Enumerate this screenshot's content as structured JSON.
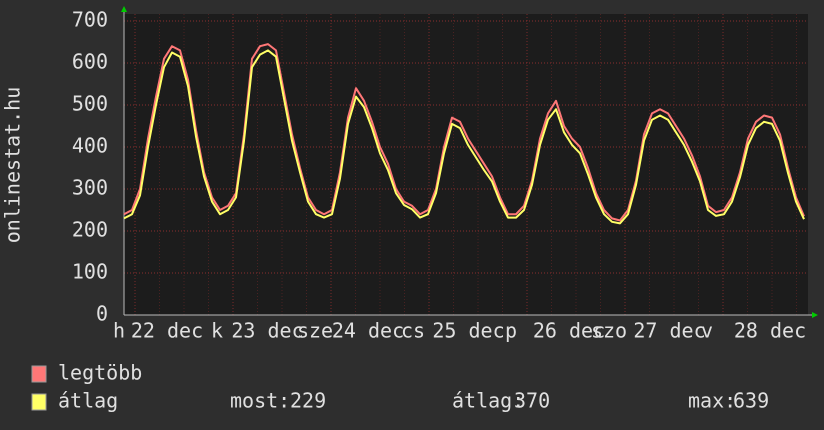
{
  "chart_data": {
    "type": "line",
    "y_label": "onlinestat.hu",
    "x_labels": [
      "h",
      "22 dec",
      "k",
      "23 dec",
      "sze",
      "24 dec",
      "cs",
      "25 dec",
      "p",
      "26 dec",
      "szo",
      "27 dec",
      "v",
      "28 dec"
    ],
    "ylim": [
      0,
      700
    ],
    "yticks": [
      0,
      100,
      200,
      300,
      400,
      500,
      600,
      700
    ],
    "grid": true,
    "series": [
      {
        "name": "legtöbb",
        "color": "#ff7777",
        "values": [
          240,
          250,
          300,
          420,
          520,
          610,
          640,
          630,
          560,
          440,
          340,
          280,
          250,
          260,
          290,
          430,
          610,
          640,
          645,
          630,
          530,
          430,
          350,
          280,
          250,
          240,
          250,
          340,
          470,
          540,
          510,
          460,
          400,
          360,
          300,
          270,
          260,
          240,
          250,
          300,
          400,
          470,
          460,
          420,
          390,
          360,
          330,
          280,
          240,
          240,
          260,
          320,
          420,
          480,
          510,
          450,
          420,
          400,
          350,
          290,
          250,
          230,
          225,
          250,
          320,
          430,
          480,
          490,
          480,
          450,
          420,
          380,
          330,
          260,
          245,
          250,
          280,
          340,
          420,
          460,
          475,
          470,
          430,
          350,
          280,
          235
        ]
      },
      {
        "name": "átlag",
        "color": "#ffff66",
        "values": [
          230,
          240,
          285,
          400,
          500,
          590,
          625,
          615,
          545,
          425,
          330,
          270,
          240,
          250,
          280,
          415,
          590,
          620,
          630,
          615,
          515,
          415,
          340,
          270,
          240,
          232,
          240,
          325,
          455,
          520,
          495,
          445,
          385,
          345,
          290,
          262,
          252,
          232,
          240,
          290,
          385,
          455,
          445,
          405,
          375,
          345,
          318,
          270,
          232,
          232,
          250,
          310,
          405,
          465,
          490,
          435,
          405,
          385,
          335,
          280,
          240,
          222,
          218,
          240,
          310,
          415,
          465,
          475,
          465,
          435,
          405,
          365,
          318,
          250,
          236,
          240,
          270,
          328,
          405,
          445,
          460,
          455,
          415,
          338,
          270,
          228
        ]
      }
    ],
    "stats": [
      {
        "label": "most:",
        "value": 229
      },
      {
        "label": "átlag:",
        "value": 370
      },
      {
        "label": "max:",
        "value": 639
      }
    ]
  }
}
